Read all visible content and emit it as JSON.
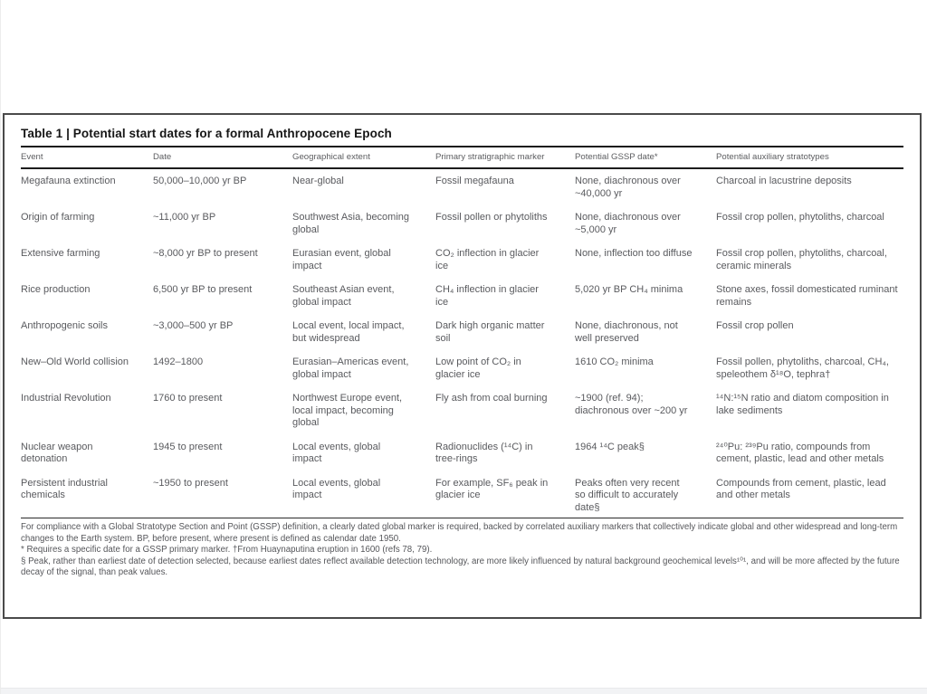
{
  "colors": {
    "panel_border": "#4a4a4a",
    "rule": "#1c1c1c",
    "title_text": "#161616",
    "body_text": "#595a5e",
    "footer_strip": "#f2f3f5"
  },
  "table": {
    "title": "Table 1 | Potential start dates for a formal Anthropocene Epoch",
    "columns": [
      "Event",
      "Date",
      "Geographical extent",
      "Primary stratigraphic marker",
      "Potential GSSP date*",
      "Potential auxiliary stratotypes"
    ],
    "rows": [
      [
        "Megafauna extinction",
        "50,000–10,000 yr BP",
        "Near-global",
        "Fossil megafauna",
        "None, diachronous over ~40,000 yr",
        "Charcoal in lacustrine deposits"
      ],
      [
        "Origin of farming",
        "~11,000 yr BP",
        "Southwest Asia, becoming global",
        "Fossil pollen or phytoliths",
        "None, diachronous over ~5,000 yr",
        "Fossil crop pollen, phytoliths, charcoal"
      ],
      [
        "Extensive farming",
        "~8,000 yr BP to present",
        "Eurasian event, global impact",
        "CO₂ inflection in glacier ice",
        "None, inflection too diffuse",
        "Fossil crop pollen, phytoliths, charcoal, ceramic minerals"
      ],
      [
        "Rice production",
        "6,500 yr BP to present",
        "Southeast Asian event, global impact",
        "CH₄ inflection in glacier ice",
        "5,020 yr BP CH₄ minima",
        "Stone axes, fossil domesticated ruminant remains"
      ],
      [
        "Anthropogenic soils",
        "~3,000–500 yr BP",
        "Local event, local impact, but widespread",
        "Dark high organic matter soil",
        "None, diachronous, not well preserved",
        "Fossil crop pollen"
      ],
      [
        "New–Old World collision",
        "1492–1800",
        "Eurasian–Americas event, global impact",
        "Low point of CO₂ in glacier ice",
        "1610 CO₂ minima",
        "Fossil pollen, phytoliths, charcoal, CH₄, speleothem δ¹⁸O, tephra†"
      ],
      [
        "Industrial Revolution",
        "1760 to present",
        "Northwest Europe event, local impact, becoming global",
        "Fly ash from coal burning",
        "~1900 (ref. 94); diachronous over ~200 yr",
        "¹⁴N:¹⁵N ratio and diatom composition in lake sediments"
      ],
      [
        "Nuclear weapon detonation",
        "1945 to present",
        "Local events, global impact",
        "Radionuclides (¹⁴C) in tree-rings",
        "1964 ¹⁴C peak§",
        "²⁴⁰Pu: ²³⁹Pu ratio, compounds from cement, plastic, lead and other metals"
      ],
      [
        "Persistent industrial chemicals",
        "~1950 to present",
        "Local events, global impact",
        "For example, SF₆ peak in glacier ice",
        "Peaks often very recent so difficult to accurately date§",
        "Compounds from cement, plastic, lead and other metals"
      ]
    ],
    "footnotes": [
      "For compliance with a Global Stratotype Section and Point (GSSP) definition, a clearly dated global marker is required, backed by correlated auxiliary markers that collectively indicate global and other widespread and long-term changes to the Earth system. BP, before present, where present is defined as calendar date 1950.",
      "* Requires a specific date for a GSSP primary marker. †From Huaynaputina eruption in 1600 (refs 78, 79).",
      "§ Peak, rather than earliest date of detection selected, because earliest dates reflect available detection technology, are more likely influenced by natural background geochemical levels¹⁰¹, and will be more affected by the future decay of the signal, than peak values."
    ]
  }
}
